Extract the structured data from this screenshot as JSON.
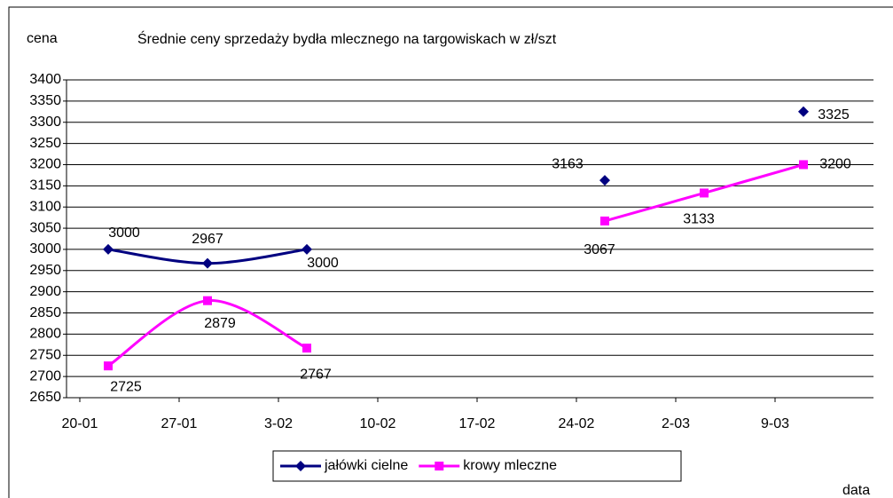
{
  "chart_data": {
    "type": "line",
    "title": "Średnie ceny sprzedaży bydła mlecznego na targowiskach w zł/szt",
    "y_label": "cena",
    "x_label": "data",
    "categories": [
      "20-01",
      "27-01",
      "3-02",
      "10-02",
      "17-02",
      "24-02",
      "2-03",
      "9-03"
    ],
    "series": [
      {
        "name": "jałówki cielne",
        "color": "#000080",
        "marker": "diamond",
        "smooth": true,
        "values": [
          3000,
          2967,
          3000,
          null,
          null,
          3163,
          null,
          3325
        ]
      },
      {
        "name": "krowy mleczne",
        "color": "#ff00ff",
        "marker": "square",
        "smooth": true,
        "values": [
          2725,
          2879,
          2767,
          null,
          null,
          3067,
          3133,
          3200
        ]
      }
    ],
    "ylim": [
      2650,
      3400
    ],
    "yticks": [
      2650,
      2700,
      2750,
      2800,
      2850,
      2900,
      2950,
      3000,
      3050,
      3100,
      3150,
      3200,
      3250,
      3300,
      3350,
      3400
    ],
    "grid": true,
    "legend": "bottom"
  }
}
